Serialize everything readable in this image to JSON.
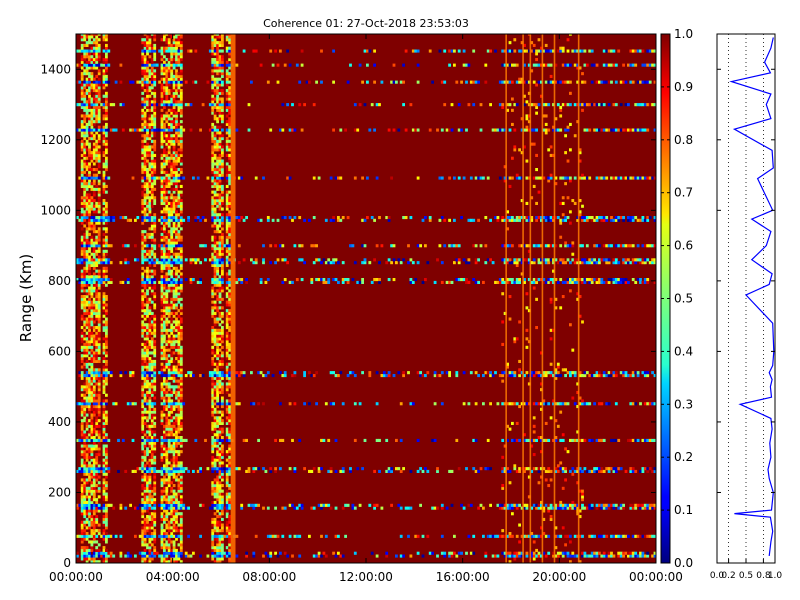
{
  "chart_data": [
    {
      "type": "heatmap",
      "title": "Coherence 01: 27-Oct-2018 23:53:03",
      "xlabel": "",
      "ylabel": "Range (Km)",
      "x_ticks": [
        "00:00:00",
        "04:00:00",
        "08:00:00",
        "12:00:00",
        "16:00:00",
        "20:00:00",
        "00:00:00"
      ],
      "xlim_hours": [
        0,
        24
      ],
      "y_ticks": [
        0,
        200,
        400,
        600,
        800,
        1000,
        1200,
        1400
      ],
      "ylim": [
        0,
        1500
      ],
      "colormap": "jet",
      "background_value": 1.0,
      "low_coherence_time_bands_hours": [
        [
          0.2,
          0.9
        ],
        [
          1.0,
          1.3
        ],
        [
          2.7,
          3.3
        ],
        [
          3.5,
          4.4
        ],
        [
          5.5,
          6.0
        ],
        [
          6.1,
          6.3
        ]
      ],
      "bright_vertical_lines_hours": [
        17.8,
        18.5,
        18.8,
        19.3,
        19.8,
        20.8
      ],
      "bright_vertical_bands_hours": [
        [
          6.4,
          6.6
        ]
      ],
      "low_coherence_range_rows_km": [
        25,
        75,
        160,
        265,
        350,
        450,
        535,
        800,
        855,
        900,
        975,
        1090,
        1230,
        1300,
        1365,
        1410,
        1450
      ],
      "colorbar": {
        "range": [
          0.0,
          1.0
        ],
        "ticks": [
          "0.0",
          "0.1",
          "0.2",
          "0.3",
          "0.4",
          "0.5",
          "0.6",
          "0.7",
          "0.8",
          "0.9",
          "1.0"
        ]
      }
    },
    {
      "type": "line",
      "title": "",
      "xlabel": "",
      "ylabel": "",
      "x_ticks": [
        "0.0",
        "0.2",
        "0.5",
        "0.8",
        "1.0"
      ],
      "xlim": [
        0,
        1
      ],
      "ylim": [
        0,
        1500
      ],
      "grid_x": [
        0.2,
        0.5,
        0.8
      ],
      "profile": [
        {
          "y": 20,
          "x": 0.9
        },
        {
          "y": 60,
          "x": 0.93
        },
        {
          "y": 90,
          "x": 0.96
        },
        {
          "y": 130,
          "x": 0.92
        },
        {
          "y": 140,
          "x": 0.3
        },
        {
          "y": 150,
          "x": 0.94
        },
        {
          "y": 200,
          "x": 0.97
        },
        {
          "y": 240,
          "x": 0.9
        },
        {
          "y": 265,
          "x": 0.88
        },
        {
          "y": 300,
          "x": 0.93
        },
        {
          "y": 340,
          "x": 0.91
        },
        {
          "y": 380,
          "x": 0.95
        },
        {
          "y": 410,
          "x": 0.93
        },
        {
          "y": 450,
          "x": 0.4
        },
        {
          "y": 470,
          "x": 0.94
        },
        {
          "y": 500,
          "x": 0.92
        },
        {
          "y": 520,
          "x": 0.95
        },
        {
          "y": 540,
          "x": 0.9
        },
        {
          "y": 560,
          "x": 0.96
        },
        {
          "y": 600,
          "x": 0.98
        },
        {
          "y": 680,
          "x": 0.96
        },
        {
          "y": 760,
          "x": 0.5
        },
        {
          "y": 790,
          "x": 0.9
        },
        {
          "y": 820,
          "x": 0.95
        },
        {
          "y": 860,
          "x": 0.6
        },
        {
          "y": 900,
          "x": 0.85
        },
        {
          "y": 940,
          "x": 0.93
        },
        {
          "y": 975,
          "x": 0.6
        },
        {
          "y": 1000,
          "x": 0.96
        },
        {
          "y": 1090,
          "x": 0.7
        },
        {
          "y": 1120,
          "x": 0.97
        },
        {
          "y": 1170,
          "x": 0.95
        },
        {
          "y": 1230,
          "x": 0.3
        },
        {
          "y": 1260,
          "x": 0.93
        },
        {
          "y": 1300,
          "x": 0.85
        },
        {
          "y": 1330,
          "x": 0.93
        },
        {
          "y": 1365,
          "x": 0.25
        },
        {
          "y": 1390,
          "x": 0.92
        },
        {
          "y": 1420,
          "x": 0.82
        },
        {
          "y": 1460,
          "x": 0.93
        },
        {
          "y": 1490,
          "x": 0.97
        }
      ]
    }
  ]
}
